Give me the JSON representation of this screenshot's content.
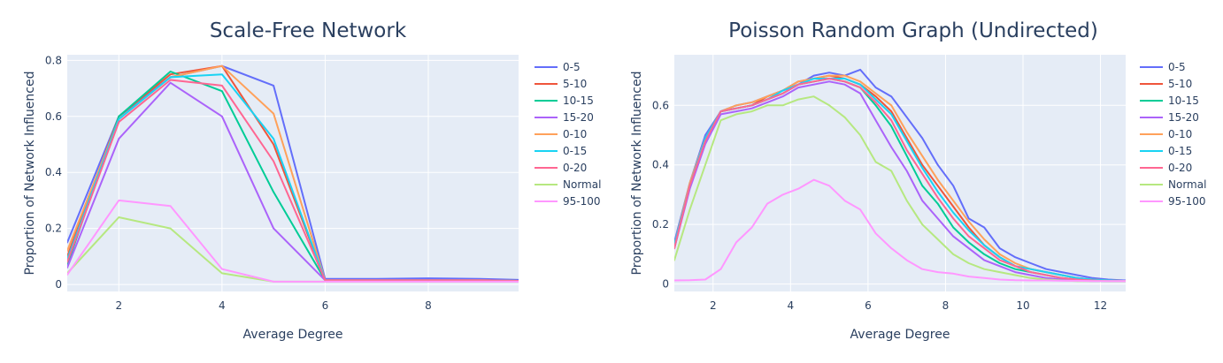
{
  "chart_data": [
    {
      "type": "line",
      "title": "Scale-Free Network",
      "xlabel": "Average Degree",
      "ylabel": "Proportion of Network Influenced",
      "xlim": [
        1,
        9.75
      ],
      "ylim": [
        -0.025,
        0.82
      ],
      "xticks": [
        2,
        4,
        6,
        8
      ],
      "yticks": [
        0,
        0.2,
        0.4,
        0.6,
        0.8
      ],
      "grid": true,
      "legend": "right",
      "x": [
        1,
        2,
        3,
        4,
        5,
        6,
        7,
        8,
        9,
        10
      ],
      "series": [
        {
          "name": "0-5",
          "color": "#636efa",
          "values": [
            0.15,
            0.6,
            0.74,
            0.78,
            0.71,
            0.02,
            0.02,
            0.022,
            0.02,
            0.015
          ]
        },
        {
          "name": "5-10",
          "color": "#ef553b",
          "values": [
            0.1,
            0.6,
            0.75,
            0.78,
            0.5,
            0.015,
            0.015,
            0.015,
            0.015,
            0.012
          ]
        },
        {
          "name": "10-15",
          "color": "#00cc96",
          "values": [
            0.07,
            0.6,
            0.76,
            0.69,
            0.33,
            0.015,
            0.015,
            0.015,
            0.015,
            0.012
          ]
        },
        {
          "name": "15-20",
          "color": "#ab63fa",
          "values": [
            0.06,
            0.52,
            0.72,
            0.6,
            0.2,
            0.015,
            0.015,
            0.015,
            0.015,
            0.012
          ]
        },
        {
          "name": "0-10",
          "color": "#ffa15a",
          "values": [
            0.12,
            0.59,
            0.74,
            0.78,
            0.61,
            0.015,
            0.015,
            0.015,
            0.015,
            0.012
          ]
        },
        {
          "name": "0-15",
          "color": "#19d3f3",
          "values": [
            0.09,
            0.59,
            0.74,
            0.75,
            0.52,
            0.015,
            0.015,
            0.015,
            0.015,
            0.012
          ]
        },
        {
          "name": "0-20",
          "color": "#ff6692",
          "values": [
            0.08,
            0.58,
            0.73,
            0.71,
            0.44,
            0.015,
            0.015,
            0.015,
            0.015,
            0.012
          ]
        },
        {
          "name": "Normal",
          "color": "#b6e880",
          "values": [
            0.04,
            0.24,
            0.2,
            0.04,
            0.01,
            0.01,
            0.01,
            0.01,
            0.01,
            0.01
          ]
        },
        {
          "name": "95-100",
          "color": "#ff97ff",
          "values": [
            0.035,
            0.3,
            0.28,
            0.055,
            0.01,
            0.01,
            0.01,
            0.01,
            0.01,
            0.01
          ]
        }
      ]
    },
    {
      "type": "line",
      "title": "Poisson Random Graph (Undirected)",
      "xlabel": "Average Degree",
      "ylabel": "Proportion of Network Influenced",
      "xlim": [
        1,
        12.65
      ],
      "ylim": [
        -0.025,
        0.77
      ],
      "xticks": [
        2,
        4,
        6,
        8,
        10,
        12
      ],
      "yticks": [
        0,
        0.2,
        0.4,
        0.6
      ],
      "grid": true,
      "legend": "right",
      "x": [
        1.0,
        1.4,
        1.8,
        2.2,
        2.6,
        3.0,
        3.4,
        3.8,
        4.2,
        4.6,
        5.0,
        5.4,
        5.8,
        6.2,
        6.6,
        7.0,
        7.4,
        7.8,
        8.2,
        8.6,
        9.0,
        9.4,
        9.8,
        10.2,
        10.6,
        11.0,
        11.4,
        11.8,
        12.2,
        12.65
      ],
      "series": [
        {
          "name": "0-5",
          "color": "#636efa",
          "values": [
            0.14,
            0.34,
            0.5,
            0.58,
            0.6,
            0.61,
            0.63,
            0.65,
            0.67,
            0.7,
            0.71,
            0.7,
            0.72,
            0.66,
            0.63,
            0.56,
            0.49,
            0.4,
            0.33,
            0.22,
            0.19,
            0.12,
            0.09,
            0.07,
            0.05,
            0.04,
            0.03,
            0.02,
            0.015,
            0.012
          ]
        },
        {
          "name": "5-10",
          "color": "#ef553b",
          "values": [
            0.13,
            0.33,
            0.49,
            0.58,
            0.59,
            0.6,
            0.63,
            0.65,
            0.68,
            0.69,
            0.7,
            0.69,
            0.67,
            0.63,
            0.58,
            0.49,
            0.4,
            0.33,
            0.26,
            0.19,
            0.13,
            0.09,
            0.06,
            0.05,
            0.04,
            0.03,
            0.02,
            0.015,
            0.012,
            0.01
          ]
        },
        {
          "name": "10-15",
          "color": "#00cc96",
          "values": [
            0.12,
            0.33,
            0.48,
            0.58,
            0.59,
            0.6,
            0.62,
            0.64,
            0.67,
            0.68,
            0.69,
            0.68,
            0.66,
            0.6,
            0.53,
            0.43,
            0.33,
            0.27,
            0.19,
            0.14,
            0.1,
            0.07,
            0.05,
            0.04,
            0.03,
            0.02,
            0.015,
            0.012,
            0.01,
            0.01
          ]
        },
        {
          "name": "15-20",
          "color": "#ab63fa",
          "values": [
            0.12,
            0.32,
            0.47,
            0.57,
            0.58,
            0.59,
            0.61,
            0.63,
            0.66,
            0.67,
            0.68,
            0.67,
            0.64,
            0.55,
            0.46,
            0.38,
            0.28,
            0.22,
            0.16,
            0.12,
            0.08,
            0.06,
            0.04,
            0.03,
            0.02,
            0.015,
            0.012,
            0.01,
            0.01,
            0.01
          ]
        },
        {
          "name": "0-10",
          "color": "#ffa15a",
          "values": [
            0.13,
            0.34,
            0.49,
            0.58,
            0.6,
            0.61,
            0.63,
            0.65,
            0.68,
            0.69,
            0.7,
            0.7,
            0.68,
            0.64,
            0.6,
            0.51,
            0.43,
            0.35,
            0.28,
            0.21,
            0.15,
            0.1,
            0.07,
            0.05,
            0.04,
            0.03,
            0.02,
            0.015,
            0.012,
            0.01
          ]
        },
        {
          "name": "0-15",
          "color": "#19d3f3",
          "values": [
            0.13,
            0.33,
            0.49,
            0.58,
            0.59,
            0.6,
            0.62,
            0.65,
            0.67,
            0.69,
            0.69,
            0.69,
            0.67,
            0.62,
            0.57,
            0.48,
            0.39,
            0.31,
            0.24,
            0.18,
            0.13,
            0.09,
            0.06,
            0.05,
            0.04,
            0.03,
            0.02,
            0.015,
            0.012,
            0.01
          ]
        },
        {
          "name": "0-20",
          "color": "#ff6692",
          "values": [
            0.12,
            0.33,
            0.48,
            0.58,
            0.59,
            0.6,
            0.62,
            0.64,
            0.67,
            0.68,
            0.69,
            0.68,
            0.66,
            0.61,
            0.55,
            0.45,
            0.37,
            0.29,
            0.22,
            0.16,
            0.12,
            0.08,
            0.06,
            0.04,
            0.03,
            0.02,
            0.015,
            0.012,
            0.01,
            0.01
          ]
        },
        {
          "name": "Normal",
          "color": "#b6e880",
          "values": [
            0.08,
            0.25,
            0.4,
            0.55,
            0.57,
            0.58,
            0.6,
            0.6,
            0.62,
            0.63,
            0.6,
            0.56,
            0.5,
            0.41,
            0.38,
            0.28,
            0.2,
            0.15,
            0.1,
            0.07,
            0.05,
            0.04,
            0.03,
            0.02,
            0.015,
            0.012,
            0.01,
            0.01,
            0.01,
            0.01
          ]
        },
        {
          "name": "95-100",
          "color": "#ff97ff",
          "values": [
            0.012,
            0.013,
            0.015,
            0.05,
            0.14,
            0.19,
            0.27,
            0.3,
            0.32,
            0.35,
            0.33,
            0.28,
            0.25,
            0.17,
            0.12,
            0.08,
            0.05,
            0.04,
            0.035,
            0.025,
            0.02,
            0.015,
            0.013,
            0.012,
            0.012,
            0.011,
            0.011,
            0.01,
            0.01,
            0.01
          ]
        }
      ]
    }
  ]
}
